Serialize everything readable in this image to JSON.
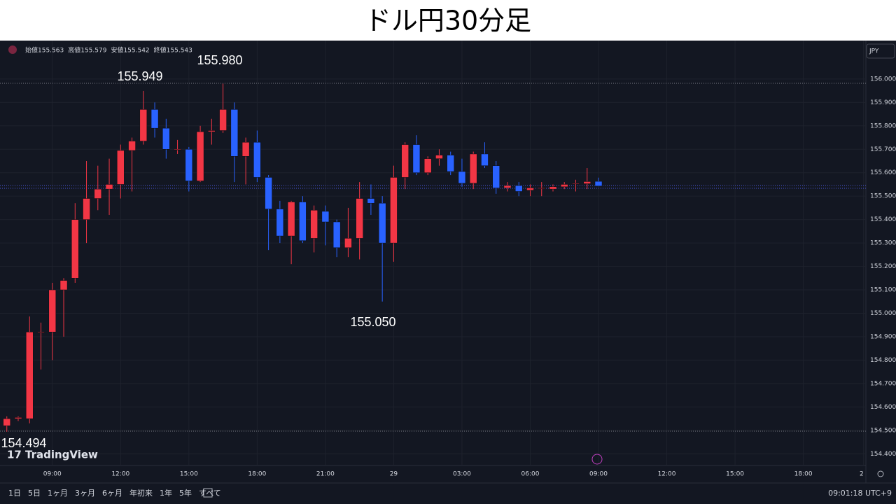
{
  "chart_data": {
    "type": "candlestick",
    "title": "ドル円30分足",
    "currency": "JPY",
    "ohlc_header": [
      "始値155.563",
      "高値155.579",
      "安値155.542",
      "終値155.543"
    ],
    "annotations": [
      "155.949",
      "155.980",
      "155.050",
      "154.494"
    ],
    "brand": "TradingView",
    "ranges": [
      "1日",
      "5日",
      "1ヶ月",
      "3ヶ月",
      "6ヶ月",
      "年初来",
      "1年",
      "5年",
      "すべて"
    ],
    "clock": "09:01:18 UTC+9",
    "up_color": "#f23645",
    "down_color": "#2962ff",
    "grid": true,
    "open": [
      154.52,
      154.55,
      154.55,
      154.92,
      154.92,
      155.1,
      155.15,
      155.4,
      155.49,
      155.53,
      155.55,
      155.695,
      155.735,
      155.87,
      155.79,
      155.7,
      155.7,
      155.565,
      155.775,
      155.78,
      155.87,
      155.67,
      155.73,
      155.58,
      155.445,
      155.33,
      155.475,
      155.32,
      155.435,
      155.39,
      155.28,
      155.32,
      155.49,
      155.47,
      155.3,
      155.58,
      155.72,
      155.6,
      155.66,
      155.675,
      155.605,
      155.555,
      155.68,
      155.63,
      155.535,
      155.545,
      155.525,
      155.535,
      155.53,
      155.54,
      155.555,
      155.553,
      155.563
    ],
    "high": [
      154.56,
      154.56,
      154.986,
      154.96,
      155.13,
      155.15,
      155.47,
      155.65,
      155.63,
      155.66,
      155.72,
      155.75,
      155.949,
      155.9,
      155.83,
      155.74,
      155.71,
      155.8,
      155.83,
      155.98,
      155.9,
      155.75,
      155.78,
      155.59,
      155.48,
      155.48,
      155.5,
      155.46,
      155.46,
      155.4,
      155.45,
      155.56,
      155.55,
      155.5,
      155.63,
      155.73,
      155.76,
      155.67,
      155.7,
      155.69,
      155.66,
      155.69,
      155.73,
      155.65,
      155.56,
      155.56,
      155.55,
      155.56,
      155.55,
      155.56,
      155.57,
      155.62,
      155.579
    ],
    "low": [
      154.494,
      154.54,
      154.53,
      154.76,
      154.8,
      154.9,
      155.13,
      155.3,
      155.44,
      155.42,
      155.49,
      155.52,
      155.72,
      155.75,
      155.66,
      155.68,
      155.52,
      155.56,
      155.72,
      155.77,
      155.56,
      155.55,
      155.56,
      155.27,
      155.3,
      155.21,
      155.3,
      155.26,
      155.29,
      155.24,
      155.24,
      155.23,
      155.42,
      155.05,
      155.22,
      155.53,
      155.59,
      155.59,
      155.63,
      155.59,
      155.54,
      155.53,
      155.62,
      155.51,
      155.52,
      155.5,
      155.5,
      155.5,
      155.52,
      155.53,
      155.52,
      155.53,
      155.542
    ],
    "close": [
      154.55,
      154.555,
      154.92,
      154.92,
      155.1,
      155.14,
      155.4,
      155.49,
      155.53,
      155.55,
      155.695,
      155.735,
      155.87,
      155.79,
      155.7,
      155.7,
      155.565,
      155.775,
      155.78,
      155.87,
      155.67,
      155.73,
      155.58,
      155.445,
      155.33,
      155.475,
      155.31,
      155.44,
      155.39,
      155.28,
      155.32,
      155.49,
      155.47,
      155.3,
      155.58,
      155.72,
      155.6,
      155.66,
      155.675,
      155.605,
      155.555,
      155.68,
      155.63,
      155.535,
      155.545,
      155.52,
      155.535,
      155.535,
      155.54,
      155.55,
      155.555,
      155.562,
      155.543
    ],
    "xlim": [
      -0.6,
      75.5
    ],
    "xticks": [
      {
        "value": 4,
        "label": "09:00"
      },
      {
        "value": 10,
        "label": "12:00"
      },
      {
        "value": 16,
        "label": "15:00"
      },
      {
        "value": 22,
        "label": "18:00"
      },
      {
        "value": 28,
        "label": "21:00"
      },
      {
        "value": 34,
        "label": "29"
      },
      {
        "value": 40,
        "label": "03:00"
      },
      {
        "value": 46,
        "label": "06:00"
      },
      {
        "value": 52,
        "label": "09:00"
      },
      {
        "value": 58,
        "label": "12:00"
      },
      {
        "value": 64,
        "label": "15:00"
      },
      {
        "value": 70,
        "label": "18:00"
      },
      {
        "value": 75.3,
        "label": "2"
      }
    ],
    "ylim": [
      154.35,
      156.164
    ],
    "yticks": [
      {
        "value": 156,
        "label": "156.000"
      },
      {
        "value": 155.9,
        "label": "155.900"
      },
      {
        "value": 155.8,
        "label": "155.800"
      },
      {
        "value": 155.7,
        "label": "155.700"
      },
      {
        "value": 155.6,
        "label": "155.600"
      },
      {
        "value": 155.5,
        "label": "155.500"
      },
      {
        "value": 155.4,
        "label": "155.400"
      },
      {
        "value": 155.3,
        "label": "155.300"
      },
      {
        "value": 155.2,
        "label": "155.200"
      },
      {
        "value": 155.1,
        "label": "155.100"
      },
      {
        "value": 155,
        "label": "155.000"
      },
      {
        "value": 154.9,
        "label": "154.900"
      },
      {
        "value": 154.8,
        "label": "154.800"
      },
      {
        "value": 154.7,
        "label": "154.700"
      },
      {
        "value": 154.6,
        "label": "154.600"
      },
      {
        "value": 154.5,
        "label": "154.500"
      },
      {
        "value": 154.4,
        "label": "154.400"
      }
    ]
  }
}
